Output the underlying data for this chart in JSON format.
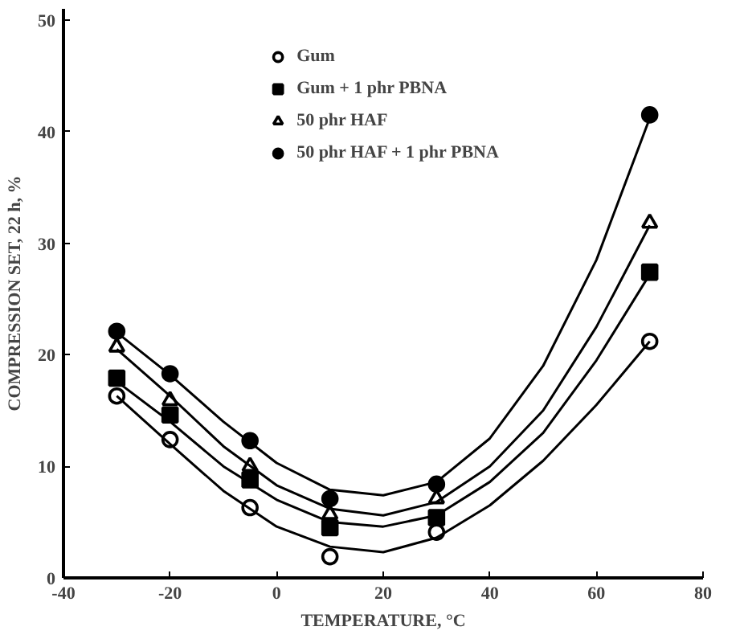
{
  "chart_data": {
    "type": "scatter",
    "xlabel": "TEMPERATURE, °C",
    "ylabel": "COMPRESSION SET, 22 h, %",
    "x": [
      -30,
      -20,
      -5,
      10,
      30,
      70
    ],
    "xlim": [
      -40,
      80
    ],
    "xticks": [
      -40,
      -20,
      0,
      20,
      40,
      60,
      80
    ],
    "ylim": [
      0,
      51
    ],
    "yticks": [
      0,
      10,
      20,
      30,
      40,
      50
    ],
    "grid": false,
    "legend": "top",
    "series": [
      {
        "name": "Gum",
        "color": "#ffffff",
        "marker": "circle",
        "values": [
          16.3,
          12.4,
          6.3,
          1.9,
          4.1,
          21.2
        ]
      },
      {
        "name": "Gum + 1 phr PBNA",
        "color": "#000000",
        "marker": "square",
        "values": [
          17.9,
          14.6,
          8.8,
          4.5,
          5.4,
          27.4
        ]
      },
      {
        "name": "50 phr HAF",
        "color": "#ffffff",
        "marker": "triangle",
        "values": [
          20.7,
          15.9,
          10.0,
          5.7,
          7.1,
          31.8
        ]
      },
      {
        "name": "50 phr HAF + 1 phr PBNA",
        "color": "#000000",
        "marker": "circle",
        "values": [
          22.1,
          18.3,
          12.3,
          7.1,
          8.4,
          41.5
        ]
      },
      {
        "type": "line",
        "color": "#000000",
        "marker": "none",
        "x": [
          -30,
          -20,
          -10,
          0,
          10,
          20,
          30,
          40,
          50,
          60,
          70
        ],
        "values": [
          16.3,
          12.0,
          7.8,
          4.6,
          2.8,
          2.3,
          3.6,
          6.5,
          10.5,
          15.5,
          21.2
        ]
      },
      {
        "type": "line",
        "color": "#000000",
        "marker": "none",
        "x": [
          -30,
          -20,
          -10,
          0,
          10,
          20,
          30,
          40,
          50,
          60,
          70
        ],
        "values": [
          17.6,
          14.0,
          10.0,
          7.0,
          5.0,
          4.6,
          5.6,
          8.6,
          13.0,
          19.5,
          27.2
        ]
      },
      {
        "type": "line",
        "color": "#000000",
        "marker": "none",
        "x": [
          -30,
          -20,
          -10,
          0,
          10,
          20,
          30,
          40,
          50,
          60,
          70
        ],
        "values": [
          20.5,
          16.3,
          11.8,
          8.3,
          6.2,
          5.6,
          6.8,
          10.0,
          15.0,
          22.5,
          31.6
        ]
      },
      {
        "type": "line",
        "color": "#000000",
        "marker": "none",
        "x": [
          -30,
          -20,
          -10,
          0,
          10,
          20,
          30,
          40,
          50,
          60,
          70
        ],
        "values": [
          22.0,
          18.2,
          14.0,
          10.3,
          7.9,
          7.4,
          8.6,
          12.5,
          19.0,
          28.5,
          41.2
        ]
      }
    ]
  }
}
